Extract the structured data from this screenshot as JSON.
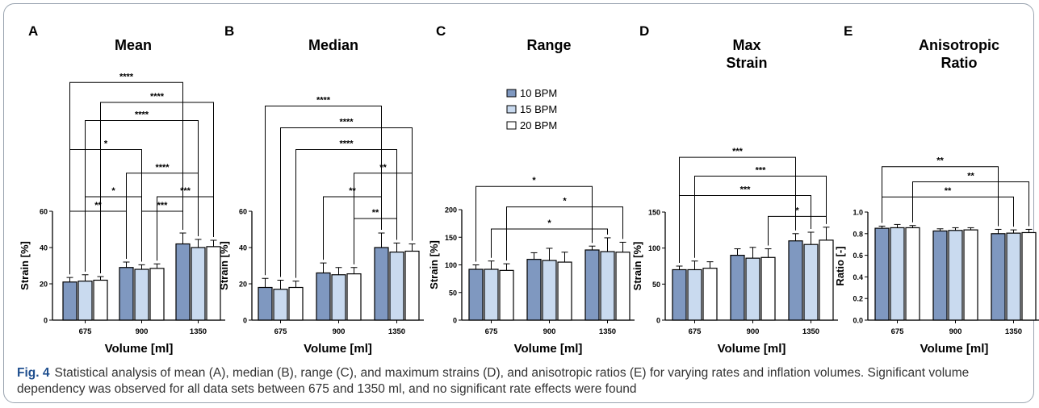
{
  "colors": {
    "s10": "#7f98c0",
    "s15": "#c9daef",
    "s20": "#ffffff",
    "edge": "#000000",
    "accent": "#1f4f8f"
  },
  "legend": [
    "10 BPM",
    "15 BPM",
    "20 BPM"
  ],
  "caption": {
    "label": "Fig. 4",
    "text": "Statistical analysis of mean (A), median (B), range (C), and maximum strains (D), and anisotropic ratios (E) for varying rates and inflation volumes. Significant volume dependency was observed for all data sets between 675 and 1350 ml, and no significant rate effects were found"
  },
  "chart_data": [
    {
      "panel": "A",
      "type": "bar",
      "title": [
        "Mean"
      ],
      "xlabel": "Volume [ml]",
      "ylabel": "Strain [%]",
      "categories": [
        "675",
        "900",
        "1350"
      ],
      "ylim": [
        0,
        60
      ],
      "yticks": [
        0,
        20,
        40,
        60
      ],
      "series": [
        {
          "name": "10 BPM",
          "values": [
            21,
            29,
            42
          ],
          "err": [
            2.5,
            3,
            6
          ]
        },
        {
          "name": "15 BPM",
          "values": [
            21.5,
            28,
            40
          ],
          "err": [
            3.5,
            2.5,
            4.5
          ]
        },
        {
          "name": "20 BPM",
          "values": [
            22,
            28.5,
            40.5
          ],
          "err": [
            2,
            2.5,
            3.5
          ]
        }
      ],
      "brackets": [
        {
          "from": [
            0,
            0
          ],
          "to": [
            1,
            0
          ],
          "y": 60,
          "label": "**"
        },
        {
          "from": [
            1,
            1
          ],
          "to": [
            2,
            0
          ],
          "y": 60,
          "label": "***"
        },
        {
          "from": [
            0,
            1
          ],
          "to": [
            1,
            1
          ],
          "y": 68,
          "label": "*"
        },
        {
          "from": [
            1,
            2
          ],
          "to": [
            2,
            2
          ],
          "y": 68,
          "label": "***"
        },
        {
          "from": [
            1,
            0
          ],
          "to": [
            2,
            1
          ],
          "y": 81,
          "label": "****"
        },
        {
          "from": [
            0,
            0
          ],
          "to": [
            1,
            1
          ],
          "y": 94,
          "label": "*"
        },
        {
          "from": [
            0,
            1
          ],
          "to": [
            2,
            1
          ],
          "y": 110,
          "label": "****"
        },
        {
          "from": [
            0,
            2
          ],
          "to": [
            2,
            2
          ],
          "y": 120,
          "label": "****"
        },
        {
          "from": [
            0,
            0
          ],
          "to": [
            2,
            0
          ],
          "y": 131,
          "label": "****"
        }
      ]
    },
    {
      "panel": "B",
      "type": "bar",
      "title": [
        "Median"
      ],
      "xlabel": "Volume [ml]",
      "ylabel": "Strain [%]",
      "categories": [
        "675",
        "900",
        "1350"
      ],
      "ylim": [
        0,
        60
      ],
      "yticks": [
        0,
        20,
        40,
        60
      ],
      "series": [
        {
          "name": "10 BPM",
          "values": [
            18,
            26,
            40
          ],
          "err": [
            5,
            5.5,
            8
          ]
        },
        {
          "name": "15 BPM",
          "values": [
            17,
            25,
            37.5
          ],
          "err": [
            5,
            4,
            5
          ]
        },
        {
          "name": "20 BPM",
          "values": [
            18,
            25.5,
            38
          ],
          "err": [
            3.5,
            3.5,
            4
          ]
        }
      ],
      "brackets": [
        {
          "from": [
            1,
            2
          ],
          "to": [
            2,
            1
          ],
          "y": 56,
          "label": "**"
        },
        {
          "from": [
            1,
            0
          ],
          "to": [
            2,
            0
          ],
          "y": 68,
          "label": "**"
        },
        {
          "from": [
            1,
            2
          ],
          "to": [
            2,
            2
          ],
          "y": 81,
          "label": "**"
        },
        {
          "from": [
            0,
            2
          ],
          "to": [
            2,
            1
          ],
          "y": 94,
          "label": "****"
        },
        {
          "from": [
            0,
            1
          ],
          "to": [
            2,
            2
          ],
          "y": 106,
          "label": "****"
        },
        {
          "from": [
            0,
            0
          ],
          "to": [
            2,
            0
          ],
          "y": 118,
          "label": "****"
        }
      ]
    },
    {
      "panel": "C",
      "type": "bar",
      "title": [
        "Range"
      ],
      "xlabel": "Volume [ml]",
      "ylabel": "Strain [%]",
      "categories": [
        "675",
        "900",
        "1350"
      ],
      "ylim": [
        0,
        200
      ],
      "yticks": [
        0,
        50,
        100,
        150,
        200
      ],
      "series": [
        {
          "name": "10 BPM",
          "values": [
            92,
            110,
            127
          ],
          "err": [
            8,
            12,
            7
          ]
        },
        {
          "name": "15 BPM",
          "values": [
            92,
            108,
            124
          ],
          "err": [
            15,
            22,
            25
          ]
        },
        {
          "name": "20 BPM",
          "values": [
            90,
            105,
            123
          ],
          "err": [
            12,
            18,
            18
          ]
        }
      ],
      "brackets": [
        {
          "from": [
            0,
            1
          ],
          "to": [
            2,
            1
          ],
          "y": 165,
          "label": "*"
        },
        {
          "from": [
            0,
            2
          ],
          "to": [
            2,
            2
          ],
          "y": 205,
          "label": "*"
        },
        {
          "from": [
            0,
            0
          ],
          "to": [
            2,
            0
          ],
          "y": 242,
          "label": "*"
        }
      ]
    },
    {
      "panel": "D",
      "type": "bar",
      "title": [
        "Max",
        "Strain"
      ],
      "xlabel": "Volume [ml]",
      "ylabel": "Strain [%]",
      "categories": [
        "675",
        "900",
        "1350"
      ],
      "ylim": [
        0,
        150
      ],
      "yticks": [
        0,
        50,
        100,
        150
      ],
      "series": [
        {
          "name": "10 BPM",
          "values": [
            70,
            90,
            110
          ],
          "err": [
            5,
            9,
            10
          ]
        },
        {
          "name": "15 BPM",
          "values": [
            70,
            86,
            105
          ],
          "err": [
            12,
            15,
            17
          ]
        },
        {
          "name": "20 BPM",
          "values": [
            72,
            87,
            111
          ],
          "err": [
            9,
            12,
            18
          ]
        }
      ],
      "brackets": [
        {
          "from": [
            1,
            2
          ],
          "to": [
            2,
            2
          ],
          "y": 144,
          "label": "*"
        },
        {
          "from": [
            0,
            0
          ],
          "to": [
            2,
            1
          ],
          "y": 173,
          "label": "***"
        },
        {
          "from": [
            0,
            1
          ],
          "to": [
            2,
            2
          ],
          "y": 200,
          "label": "***"
        },
        {
          "from": [
            0,
            0
          ],
          "to": [
            2,
            0
          ],
          "y": 226,
          "label": "***"
        }
      ]
    },
    {
      "panel": "E",
      "type": "bar",
      "title": [
        "Anisotropic",
        "Ratio"
      ],
      "xlabel": "Volume [ml]",
      "ylabel": "Ratio [-]",
      "categories": [
        "675",
        "900",
        "1350"
      ],
      "ylim": [
        0,
        1.0
      ],
      "yticks": [
        0.0,
        0.2,
        0.4,
        0.6,
        0.8,
        1.0
      ],
      "series": [
        {
          "name": "10 BPM",
          "values": [
            0.85,
            0.825,
            0.8
          ],
          "err": [
            0.02,
            0.02,
            0.04
          ]
        },
        {
          "name": "15 BPM",
          "values": [
            0.855,
            0.83,
            0.805
          ],
          "err": [
            0.03,
            0.025,
            0.03
          ]
        },
        {
          "name": "20 BPM",
          "values": [
            0.855,
            0.835,
            0.81
          ],
          "err": [
            0.02,
            0.02,
            0.03
          ]
        }
      ],
      "brackets": [
        {
          "from": [
            0,
            0
          ],
          "to": [
            2,
            1
          ],
          "y": 1.14,
          "label": "**"
        },
        {
          "from": [
            0,
            2
          ],
          "to": [
            2,
            2
          ],
          "y": 1.28,
          "label": "**"
        },
        {
          "from": [
            0,
            0
          ],
          "to": [
            2,
            0
          ],
          "y": 1.42,
          "label": "**"
        }
      ]
    }
  ]
}
